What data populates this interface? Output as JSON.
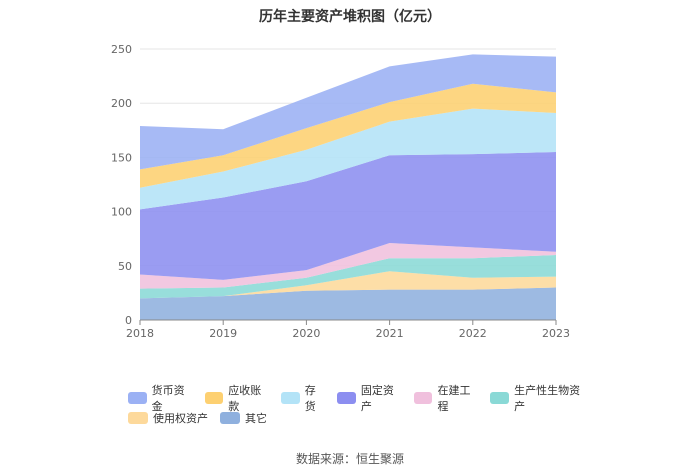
{
  "chart_data": {
    "type": "area",
    "stacked": true,
    "title": "历年主要资产堆积图（亿元）",
    "xlabel": "",
    "ylabel": "",
    "categories": [
      "2018",
      "2019",
      "2020",
      "2021",
      "2022",
      "2023"
    ],
    "ylim": [
      0,
      250
    ],
    "yticks": [
      0,
      50,
      100,
      150,
      200,
      250
    ],
    "series": [
      {
        "name": "其它",
        "color": "#8fb0de",
        "values": [
          20,
          22,
          27,
          28,
          28,
          30
        ]
      },
      {
        "name": "使用权资产",
        "color": "#fdd99b",
        "values": [
          0,
          0,
          5,
          17,
          11,
          10
        ]
      },
      {
        "name": "生产性生物资产",
        "color": "#8ad9d6",
        "values": [
          9,
          8,
          7,
          12,
          18,
          20
        ]
      },
      {
        "name": "在建工程",
        "color": "#f0c0dd",
        "values": [
          13,
          7,
          7,
          14,
          10,
          3
        ]
      },
      {
        "name": "固定资产",
        "color": "#8c8ef0",
        "values": [
          60,
          76,
          82,
          81,
          86,
          92
        ]
      },
      {
        "name": "存货",
        "color": "#b3e3f7",
        "values": [
          20,
          24,
          29,
          31,
          42,
          36
        ]
      },
      {
        "name": "应收账款",
        "color": "#fdd071",
        "values": [
          17,
          15,
          20,
          18,
          23,
          19
        ]
      },
      {
        "name": "货币资金",
        "color": "#9bb1f4",
        "values": [
          40,
          24,
          28,
          33,
          27,
          33
        ]
      }
    ],
    "legend_order": [
      "货币资金",
      "应收账款",
      "存货",
      "固定资产",
      "在建工程",
      "生产性生物资产",
      "使用权资产",
      "其它"
    ],
    "grid": true,
    "legend_position": "bottom"
  },
  "source_text": "数据来源：恒生聚源"
}
